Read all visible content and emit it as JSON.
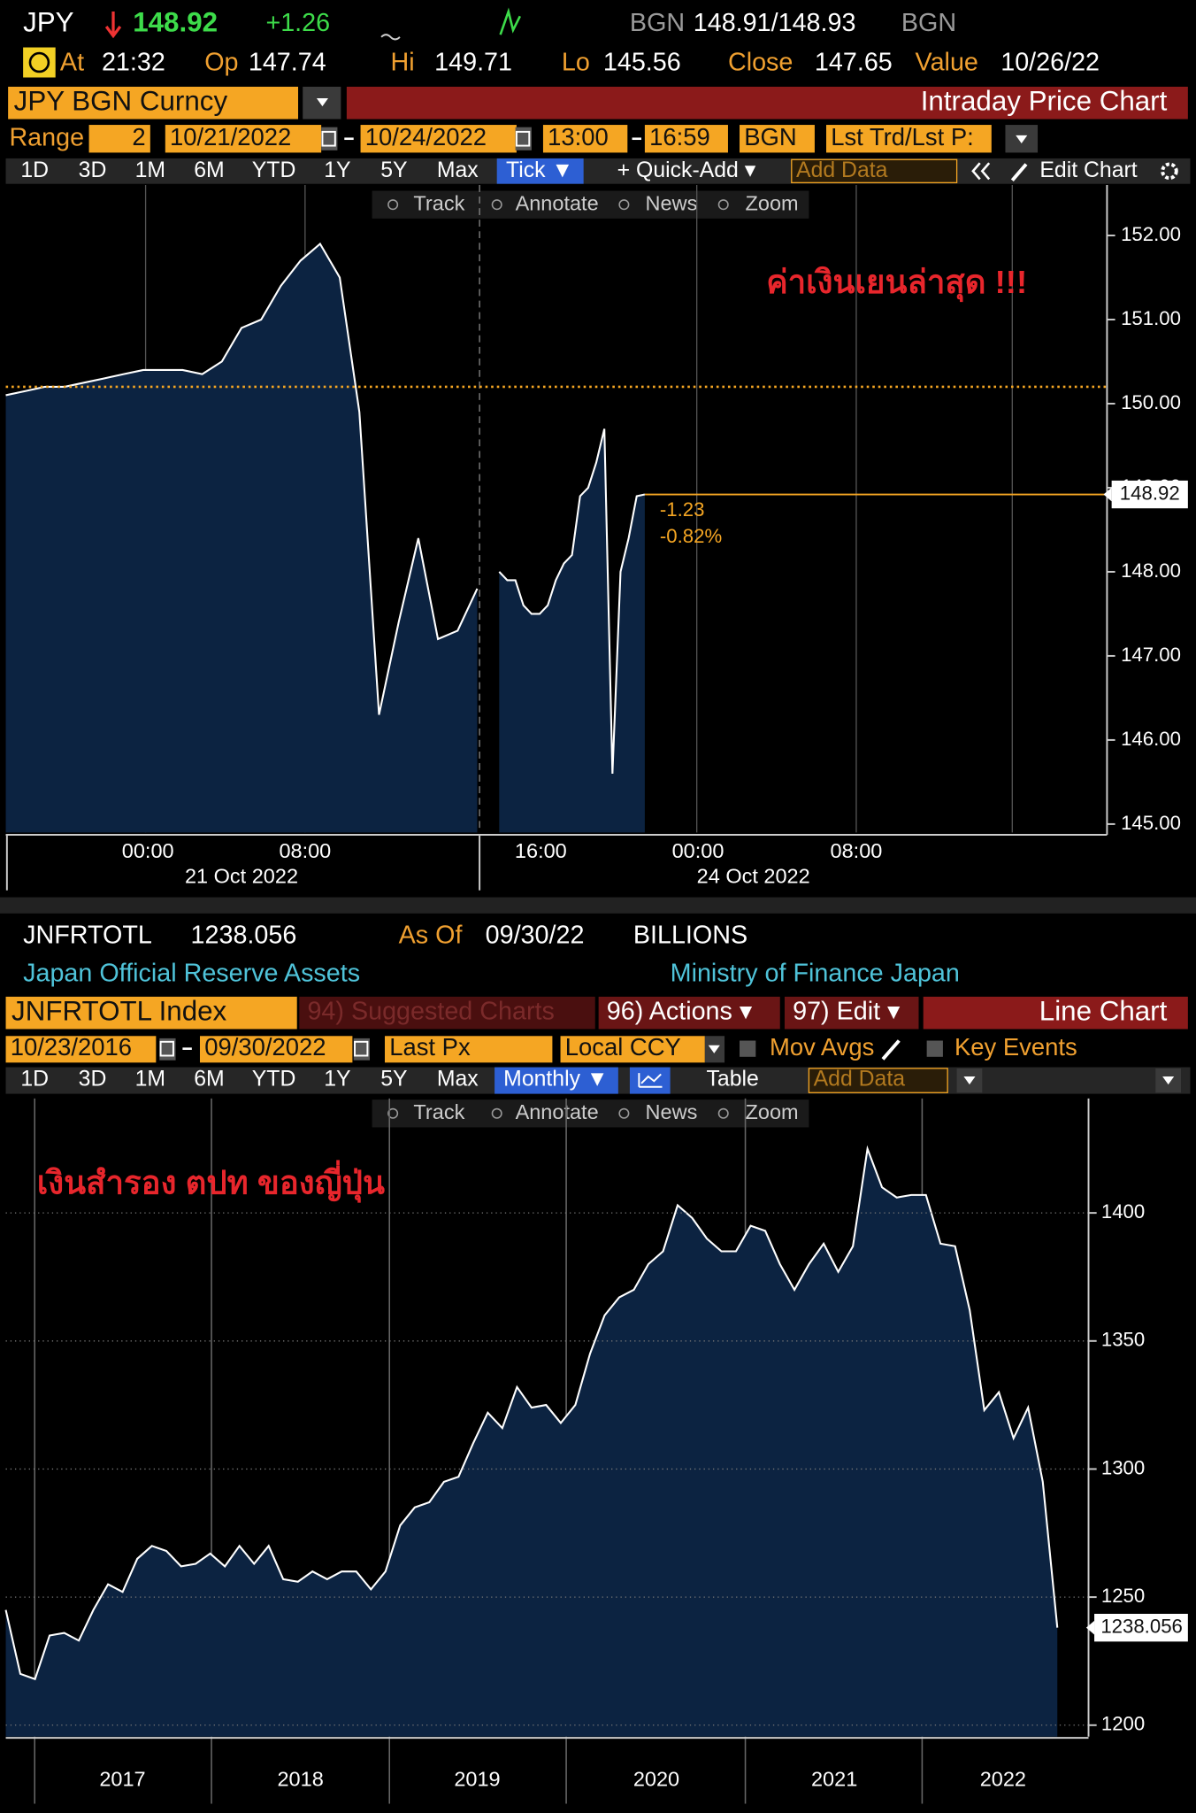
{
  "panel1": {
    "ticker": "JPY",
    "last": "148.92",
    "change": "+1.26",
    "bid_source": "BGN",
    "bid_ask": "148.91/148.93",
    "ask_source": "BGN",
    "at_label": "At",
    "time": "21:32",
    "open_label": "Op",
    "open": "147.74",
    "high_label": "Hi",
    "high": "149.71",
    "low_label": "Lo",
    "low": "145.56",
    "close_label": "Close",
    "close": "147.65",
    "value_label": "Value",
    "value_date": "10/26/22",
    "security": "JPY BGN Curncy",
    "chart_title": "Intraday Price Chart",
    "range_label": "Range",
    "range": "2",
    "start_date": "10/21/2022",
    "end_date": "10/24/2022",
    "start_time": "13:00",
    "end_time": "16:59",
    "source": "BGN",
    "field": "Lst Trd/Lst P:",
    "periods": [
      "1D",
      "3D",
      "1M",
      "6M",
      "YTD",
      "1Y",
      "5Y",
      "Max"
    ],
    "interval": "Tick ▼",
    "quick_add": "+ Quick-Add ▾",
    "add_data": "Add Data",
    "edit_chart": "Edit Chart",
    "tools": [
      "Track",
      "Annotate",
      "News",
      "Zoom"
    ]
  },
  "panel2": {
    "ticker": "JNFRTOTL",
    "last": "1238.056",
    "as_of_label": "As Of",
    "as_of": "09/30/22",
    "units": "BILLIONS",
    "description": "Japan Official Reserve Assets",
    "source": "Ministry of Finance Japan",
    "security": "JNFRTOTL Index",
    "suggested": "94) Suggested Charts",
    "actions": "96) Actions ▾",
    "edit": "97) Edit ▾",
    "chart_title": "Line Chart",
    "start_date": "10/23/2016",
    "end_date": "09/30/2022",
    "field": "Last Px",
    "currency": "Local CCY",
    "mov_avgs": "Mov Avgs",
    "key_events": "Key Events",
    "periods": [
      "1D",
      "3D",
      "1M",
      "6M",
      "YTD",
      "1Y",
      "5Y",
      "Max"
    ],
    "interval": "Monthly ▼",
    "table": "Table",
    "add_data": "Add Data",
    "tools": [
      "Track",
      "Annotate",
      "News",
      "Zoom"
    ]
  },
  "chart_data": [
    {
      "type": "area",
      "annotation": "ค่าเงินเยนล่าสุด !!!",
      "values": [
        150.1,
        150.15,
        150.2,
        150.2,
        150.25,
        150.3,
        150.35,
        150.4,
        150.4,
        150.4,
        150.35,
        150.5,
        150.9,
        151.0,
        151.4,
        151.7,
        151.9,
        151.5,
        149.9,
        146.3,
        147.4,
        148.4,
        147.2,
        147.3,
        147.8,
        null,
        148.0,
        147.9,
        147.9,
        147.6,
        147.5,
        147.5,
        147.6,
        147.9,
        148.1,
        148.2,
        148.9,
        149.0,
        149.3,
        149.7,
        145.6,
        148.0,
        148.4,
        148.9,
        148.92
      ],
      "color": "#ffffff",
      "fill": "#0c2341",
      "ylim": [
        144.9,
        152.6
      ],
      "yticks": [
        {
          "value": 145,
          "label": "145.00"
        },
        {
          "value": 146,
          "label": "146.00"
        },
        {
          "value": 147,
          "label": "147.00"
        },
        {
          "value": 148,
          "label": "148.00"
        },
        {
          "value": 149,
          "label": "149.00"
        },
        {
          "value": 150,
          "label": "150.00"
        },
        {
          "value": 151,
          "label": "151.00"
        },
        {
          "value": 152,
          "label": "152.00"
        }
      ],
      "reference_line": 150.2,
      "reference_color": "#f5a623",
      "last_value": 148.92,
      "change_labels": [
        "-1.23",
        "-0.82%"
      ],
      "x_labels": [
        "00:00",
        "08:00",
        "16:00",
        "00:00",
        "08:00"
      ],
      "date_labels": [
        "21 Oct 2022",
        "24 Oct 2022"
      ]
    },
    {
      "type": "area",
      "annotation": "เงินสำรอง ตปท ของญี่ปุ่น",
      "values": [
        1245,
        1220,
        1218,
        1235,
        1236,
        1233,
        1245,
        1255,
        1252,
        1265,
        1270,
        1268,
        1262,
        1263,
        1267,
        1262,
        1270,
        1263,
        1270,
        1257,
        1256,
        1260,
        1257,
        1260,
        1260,
        1253,
        1260,
        1278,
        1285,
        1287,
        1295,
        1297,
        1310,
        1322,
        1316,
        1332,
        1324,
        1325,
        1318,
        1325,
        1345,
        1360,
        1367,
        1370,
        1380,
        1385,
        1403,
        1398,
        1390,
        1385,
        1385,
        1395,
        1393,
        1380,
        1370,
        1380,
        1388,
        1377,
        1387,
        1425,
        1410,
        1406,
        1407,
        1407,
        1388,
        1387,
        1362,
        1323,
        1330,
        1312,
        1324,
        1295,
        1238.056
      ],
      "color": "#ffffff",
      "fill": "#0c2341",
      "ylim": [
        1195.5,
        1444.7
      ],
      "yticks": [
        1200,
        1250,
        1300,
        1350,
        1400
      ],
      "grid": true,
      "last_value": 1238.056,
      "x_labels": [
        "2017",
        "2018",
        "2019",
        "2020",
        "2021",
        "2022"
      ]
    }
  ]
}
